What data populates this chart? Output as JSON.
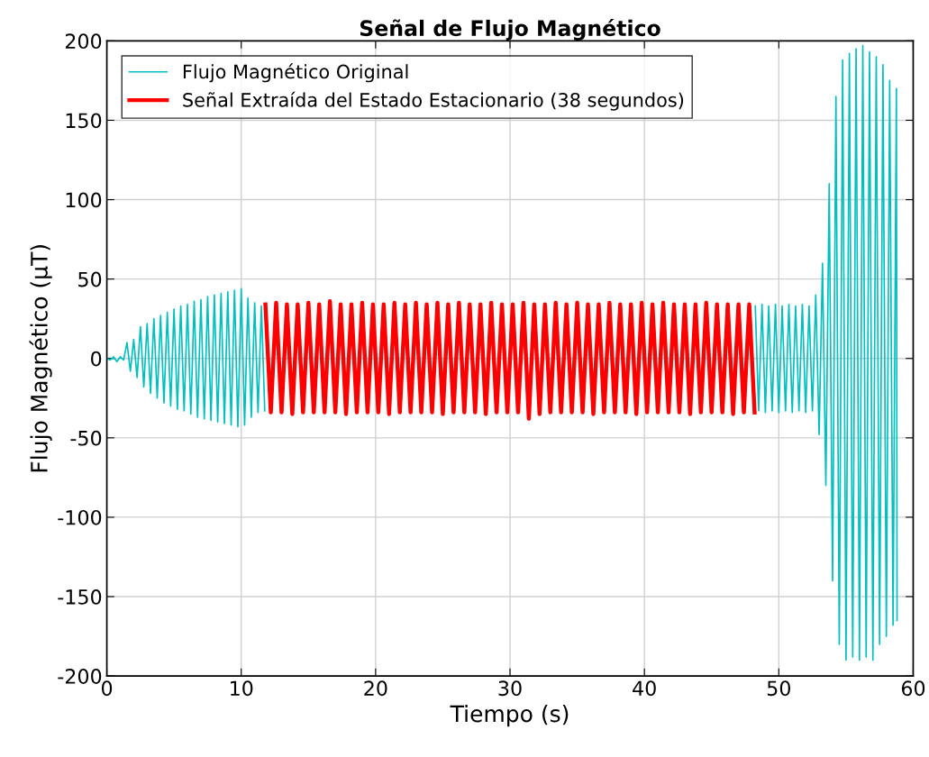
{
  "chart_data": {
    "type": "line",
    "title": "Señal de Flujo Magnético",
    "xlabel": "Tiempo (s)",
    "ylabel": "Flujo Magnético (μT)",
    "xlim": [
      0,
      60
    ],
    "xticks": [
      0,
      10,
      20,
      30,
      40,
      50,
      60
    ],
    "ylim": [
      -200,
      200
    ],
    "yticks": [
      -200,
      -150,
      -100,
      -50,
      0,
      50,
      100,
      150,
      200
    ],
    "grid": true,
    "legend": "top left",
    "marker": "none",
    "line_style": "solid",
    "series": [
      {
        "name": "Flujo Magnético Original",
        "color": "#00bfbf",
        "x": [
          0,
          0.25,
          0.5,
          0.75,
          1,
          1.25,
          1.5,
          1.75,
          2,
          2.25,
          2.5,
          2.75,
          3,
          3.25,
          3.5,
          3.75,
          4,
          4.25,
          4.5,
          4.75,
          5,
          5.25,
          5.5,
          5.75,
          6,
          6.25,
          6.5,
          6.75,
          7,
          7.25,
          7.5,
          7.75,
          8,
          8.25,
          8.5,
          8.75,
          9,
          9.25,
          9.5,
          9.75,
          10,
          10.25,
          10.5,
          10.75,
          11,
          11.25,
          11.5,
          11.75,
          30,
          48.25,
          48.5,
          48.75,
          49,
          49.25,
          49.5,
          49.75,
          50,
          50.25,
          50.5,
          50.75,
          51,
          51.25,
          51.5,
          51.75,
          52,
          52.25,
          52.5,
          52.75,
          53,
          53.25,
          53.5,
          53.75,
          54,
          54.25,
          54.5,
          54.75,
          55,
          55.25,
          55.5,
          55.75,
          56,
          56.25,
          56.5,
          56.75,
          57,
          57.25,
          57.5,
          57.75,
          58,
          58.25,
          58.5,
          58.75,
          58.8
        ],
        "values": [
          0,
          -1,
          1,
          -2,
          1,
          -1,
          10,
          -8,
          12,
          -12,
          20,
          -18,
          22,
          -22,
          25,
          -25,
          27,
          -28,
          29,
          -30,
          31,
          -32,
          33,
          -33,
          34,
          -35,
          36,
          -37,
          37,
          -38,
          39,
          -39,
          40,
          -40,
          41,
          -41,
          42,
          -42,
          43,
          -43,
          44,
          -42,
          38,
          -37,
          35,
          -34,
          33,
          -33,
          null,
          33,
          -33,
          34,
          -34,
          33,
          -33,
          34,
          -34,
          33,
          -33,
          34,
          -34,
          33,
          -33,
          34,
          -34,
          33,
          -33,
          40,
          -48,
          60,
          -80,
          110,
          -140,
          165,
          -180,
          188,
          -190,
          192,
          -188,
          195,
          -190,
          197,
          -188,
          193,
          -190,
          190,
          -180,
          185,
          -175,
          175,
          -168,
          170,
          -165
        ]
      },
      {
        "name": "Señal Extraída del Estado Estacionario (38 segundos)",
        "color": "#ff0000",
        "x": [
          11.8,
          12.2,
          12.6,
          13.0,
          13.4,
          13.8,
          14.2,
          14.6,
          15.0,
          15.4,
          15.8,
          16.2,
          16.6,
          17.0,
          17.4,
          17.8,
          18.2,
          18.6,
          19.0,
          19.4,
          19.8,
          20.2,
          20.6,
          21.0,
          21.4,
          21.8,
          22.2,
          22.6,
          23.0,
          23.4,
          23.8,
          24.2,
          24.6,
          25.0,
          25.4,
          25.8,
          26.2,
          26.6,
          27.0,
          27.4,
          27.8,
          28.2,
          28.6,
          29.0,
          29.4,
          29.8,
          30.2,
          30.6,
          31.0,
          31.4,
          31.8,
          32.2,
          32.6,
          33.0,
          33.4,
          33.8,
          34.2,
          34.6,
          35.0,
          35.4,
          35.8,
          36.2,
          36.6,
          37.0,
          37.4,
          37.8,
          38.2,
          38.6,
          39.0,
          39.4,
          39.8,
          40.2,
          40.6,
          41.0,
          41.4,
          41.8,
          42.2,
          42.6,
          43.0,
          43.4,
          43.8,
          44.2,
          44.6,
          45.0,
          45.4,
          45.8,
          46.2,
          46.6,
          47.0,
          47.4,
          47.8,
          48.2
        ],
        "values": [
          34,
          -34,
          35,
          -34,
          34,
          -35,
          34,
          -34,
          35,
          -34,
          34,
          -34,
          36,
          -34,
          34,
          -35,
          34,
          -34,
          35,
          -34,
          34,
          -34,
          34,
          -35,
          35,
          -34,
          34,
          -34,
          35,
          -34,
          34,
          -34,
          35,
          -35,
          34,
          -34,
          35,
          -34,
          34,
          -34,
          34,
          -35,
          35,
          -34,
          34,
          -34,
          34,
          -34,
          35,
          -38,
          34,
          -35,
          34,
          -34,
          35,
          -34,
          34,
          -34,
          35,
          -34,
          34,
          -35,
          34,
          -34,
          35,
          -34,
          34,
          -34,
          34,
          -35,
          35,
          -34,
          34,
          -34,
          35,
          -34,
          34,
          -34,
          34,
          -35,
          34,
          -34,
          35,
          -34,
          34,
          -34,
          34,
          -35,
          34,
          -34,
          34,
          -34
        ]
      }
    ]
  }
}
